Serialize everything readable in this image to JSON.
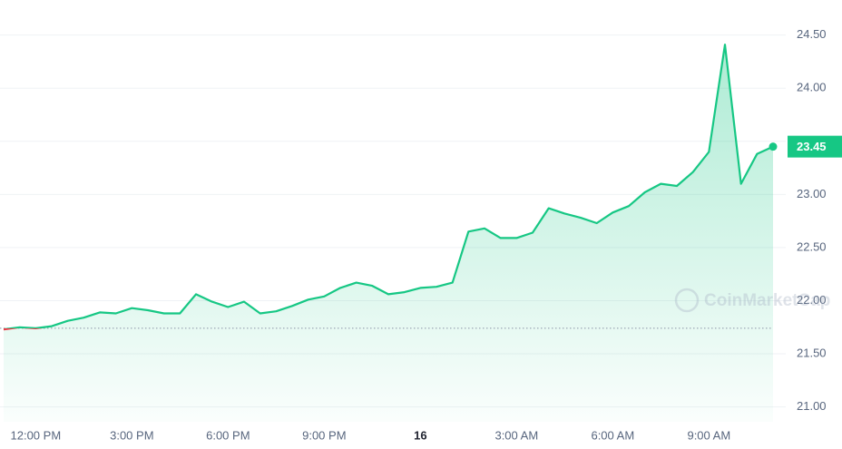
{
  "chart_data": {
    "type": "line",
    "watermark": "CoinMarketCap",
    "categories": [
      null,
      null,
      "12:00 PM",
      null,
      null,
      null,
      null,
      null,
      "3:00 PM",
      null,
      null,
      null,
      null,
      null,
      "6:00 PM",
      null,
      null,
      null,
      null,
      null,
      "9:00 PM",
      null,
      null,
      null,
      null,
      null,
      "16",
      null,
      null,
      null,
      null,
      null,
      "3:00 AM",
      null,
      null,
      null,
      null,
      null,
      "6:00 AM",
      null,
      null,
      null,
      null,
      null,
      "9:00 AM",
      null,
      null,
      null,
      null
    ],
    "values": [
      21.73,
      21.75,
      21.74,
      21.76,
      21.81,
      21.84,
      21.89,
      21.88,
      21.93,
      21.91,
      21.88,
      21.88,
      22.06,
      21.99,
      21.94,
      21.99,
      21.88,
      21.9,
      21.95,
      22.01,
      22.04,
      22.12,
      22.17,
      22.14,
      22.06,
      22.08,
      22.12,
      22.13,
      22.17,
      22.65,
      22.68,
      22.59,
      22.59,
      22.64,
      22.87,
      22.82,
      22.78,
      22.73,
      22.83,
      22.89,
      23.02,
      23.1,
      23.08,
      23.21,
      23.4,
      24.41,
      23.1,
      23.38,
      23.45
    ],
    "baseline": 21.74,
    "last_price": 23.45,
    "color": "#16c784",
    "down_color": "#ea3943",
    "ylim": [
      20.86,
      24.83
    ],
    "yticks": [
      {
        "value": 21,
        "label": "21.00"
      },
      {
        "value": 21.5,
        "label": "21.50"
      },
      {
        "value": 22,
        "label": "22.00"
      },
      {
        "value": 22.5,
        "label": "22.50"
      },
      {
        "value": 23,
        "label": "23.00"
      },
      {
        "value": 23.5,
        "label": "23.50"
      },
      {
        "value": 24,
        "label": "24.00"
      },
      {
        "value": 24.5,
        "label": "24.50"
      }
    ],
    "grid": true
  }
}
